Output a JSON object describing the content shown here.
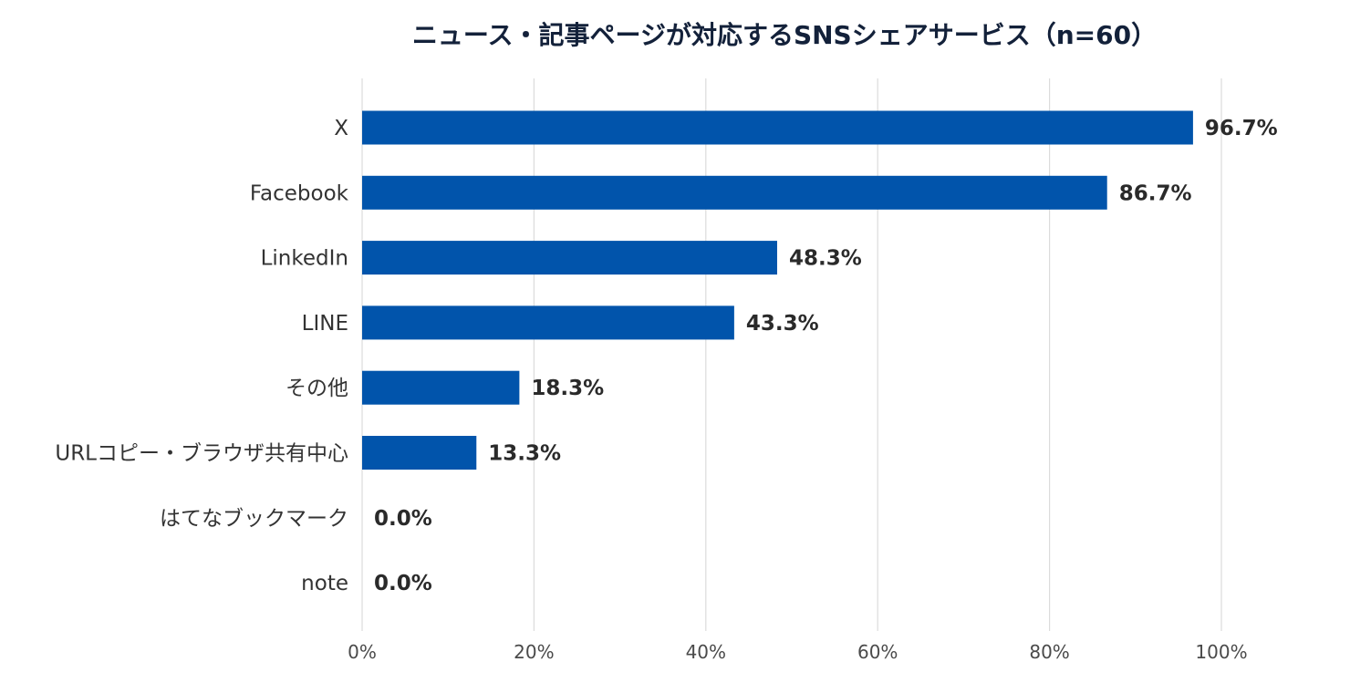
{
  "chart_data": {
    "type": "bar",
    "orientation": "horizontal",
    "title": "ニュース・記事ページが対応するSNSシェアサービス（n=60）",
    "categories": [
      "X",
      "Facebook",
      "LinkedIn",
      "LINE",
      "その他",
      "URLコピー・ブラウザ共有中心",
      "はてなブックマーク",
      "note"
    ],
    "values": [
      96.7,
      86.7,
      48.3,
      43.3,
      18.3,
      13.3,
      0.0,
      0.0
    ],
    "value_labels": [
      "96.7%",
      "86.7%",
      "48.3%",
      "43.3%",
      "18.3%",
      "13.3%",
      "0.0%",
      "0.0%"
    ],
    "xlim": [
      0,
      100
    ],
    "xticks": [
      0,
      20,
      40,
      60,
      80,
      100
    ],
    "xtick_labels": [
      "0%",
      "20%",
      "40%",
      "60%",
      "80%",
      "100%"
    ],
    "grid": true,
    "legend": "none",
    "bar_color": "#0154ab"
  }
}
